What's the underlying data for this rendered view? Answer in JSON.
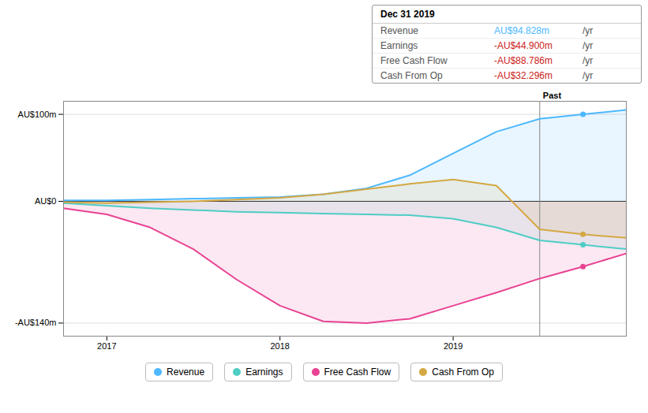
{
  "chart_data": {
    "type": "line",
    "x": [
      2016.75,
      2017.0,
      2017.25,
      2017.5,
      2017.75,
      2018.0,
      2018.25,
      2018.5,
      2018.75,
      2019.0,
      2019.25,
      2019.5,
      2019.75,
      2020.0
    ],
    "series": [
      {
        "name": "Revenue",
        "color": "#4db8ff",
        "values": [
          1,
          1,
          2,
          3,
          4,
          5,
          8,
          15,
          30,
          55,
          80,
          94.828,
          100,
          105
        ]
      },
      {
        "name": "Earnings",
        "color": "#4ecdc4",
        "values": [
          -2,
          -5,
          -8,
          -10,
          -12,
          -13,
          -14,
          -15,
          -16,
          -20,
          -30,
          -44.9,
          -50,
          -55
        ]
      },
      {
        "name": "Free Cash Flow",
        "color": "#e84393",
        "values": [
          -8,
          -15,
          -30,
          -55,
          -90,
          -120,
          -138,
          -140,
          -135,
          -120,
          -105,
          -88.786,
          -75,
          -60
        ]
      },
      {
        "name": "Cash From Op",
        "color": "#d4a843",
        "values": [
          -1,
          -2,
          -1,
          0,
          2,
          4,
          8,
          14,
          20,
          25,
          18,
          -32.296,
          -38,
          -42
        ]
      }
    ],
    "xlim": [
      2016.75,
      2020.0
    ],
    "xticks": [
      2017,
      2018,
      2019
    ],
    "ylim": [
      -155,
      115
    ],
    "yticks": [
      {
        "value": 100,
        "label": "AU$100m"
      },
      {
        "value": 0,
        "label": "AU$0"
      },
      {
        "value": -140,
        "label": "-AU$140m"
      }
    ],
    "grid": true,
    "divider_x": 2019.5,
    "annotations": [
      "Past"
    ],
    "tooltip": {
      "title": "Dec 31 2019",
      "rows": [
        {
          "label": "Revenue",
          "value": 94.828,
          "value_label": "AU$94.828m",
          "unit": "/yr",
          "color": "#4db8ff"
        },
        {
          "label": "Earnings",
          "value": -44.9,
          "value_label": "-AU$44.900m",
          "unit": "/yr",
          "color": "#cc2222"
        },
        {
          "label": "Free Cash Flow",
          "value": -88.786,
          "value_label": "-AU$88.786m",
          "unit": "/yr",
          "color": "#cc2222"
        },
        {
          "label": "Cash From Op",
          "value": -32.296,
          "value_label": "-AU$32.296m",
          "unit": "/yr",
          "color": "#cc2222"
        }
      ]
    }
  }
}
